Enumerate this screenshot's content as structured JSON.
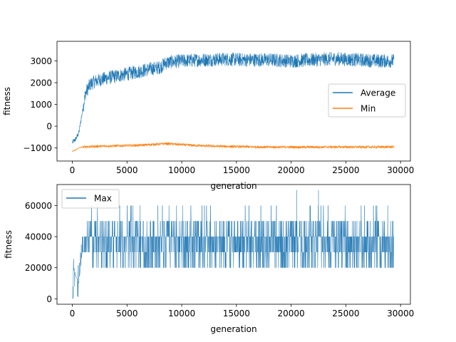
{
  "chart_data": [
    {
      "type": "line",
      "xlabel": "generation",
      "ylabel": "fitness",
      "xlim": [
        -1400,
        30900
      ],
      "ylim": [
        -1600,
        3900
      ],
      "xticks": [
        0,
        5000,
        10000,
        15000,
        20000,
        25000,
        30000
      ],
      "yticks": [
        -1000,
        0,
        1000,
        2000,
        3000
      ],
      "legend": "center-right",
      "series": [
        {
          "name": "Average",
          "color": "#1f77b4",
          "x": [
            0,
            300,
            600,
            900,
            1200,
            1600,
            2000,
            3000,
            4000,
            5000,
            6000,
            7000,
            8000,
            8500,
            9000,
            10000,
            12000,
            14000,
            16000,
            18000,
            20000,
            22000,
            24000,
            26000,
            28000,
            29400
          ],
          "values": [
            -750,
            -600,
            -300,
            600,
            1500,
            1900,
            2050,
            2200,
            2300,
            2400,
            2500,
            2620,
            2700,
            2900,
            2950,
            3000,
            3050,
            3080,
            3050,
            3050,
            3000,
            3050,
            3100,
            3050,
            3000,
            3000
          ],
          "noise": 320
        },
        {
          "name": "Min",
          "color": "#ff7f0e",
          "x": [
            0,
            300,
            600,
            1000,
            2000,
            4000,
            6000,
            8000,
            8500,
            9500,
            11000,
            13000,
            15000,
            18000,
            21000,
            24000,
            27000,
            29400
          ],
          "values": [
            -1150,
            -1100,
            -1000,
            -950,
            -930,
            -900,
            -880,
            -820,
            -800,
            -830,
            -880,
            -920,
            -940,
            -960,
            -960,
            -955,
            -960,
            -950
          ],
          "noise": 60
        }
      ]
    },
    {
      "type": "line",
      "xlabel": "generation",
      "ylabel": "fitness",
      "xlim": [
        -1400,
        30900
      ],
      "ylim": [
        -3500,
        73500
      ],
      "xticks": [
        0,
        5000,
        10000,
        15000,
        20000,
        25000,
        30000
      ],
      "yticks": [
        0,
        20000,
        40000,
        60000
      ],
      "legend": "upper-left",
      "series": [
        {
          "name": "Max",
          "color": "#1f77b4",
          "x": [
            0,
            150,
            300,
            600,
            900,
            1300,
            2000,
            5000,
            10000,
            15000,
            20000,
            25000,
            29400
          ],
          "values": [
            0,
            20000,
            15000,
            10000,
            30000,
            30000,
            30000,
            30000,
            30000,
            35000,
            35000,
            35000,
            35000
          ],
          "low": 20000,
          "high": 50000,
          "peaks": [
            [
              20500,
              70000
            ],
            [
              22500,
              70000
            ]
          ]
        }
      ]
    }
  ]
}
